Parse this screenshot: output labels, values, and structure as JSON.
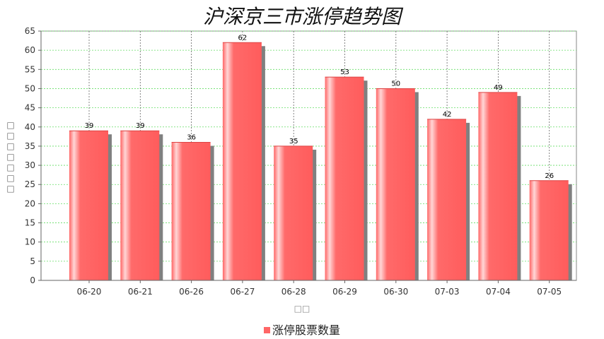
{
  "chart_data": {
    "type": "bar",
    "title": "沪深京三市涨停趋势图",
    "categories": [
      "06-20",
      "06-21",
      "06-26",
      "06-27",
      "06-28",
      "06-29",
      "06-30",
      "07-03",
      "07-04",
      "07-05"
    ],
    "series": [
      {
        "name": "涨停股票数量",
        "values": [
          39,
          39,
          36,
          62,
          35,
          53,
          50,
          42,
          49,
          26
        ]
      }
    ],
    "ylim": [
      0,
      65
    ],
    "yticks": [
      0,
      5,
      10,
      15,
      20,
      25,
      30,
      35,
      40,
      45,
      50,
      55,
      60,
      65
    ],
    "xlabel": "□□",
    "ylabel": "□□□□□□□",
    "grid": true,
    "legend": "bottom",
    "colors": {
      "bar": "#ff6666",
      "bar_highlight": "#ffd0d0",
      "shadow": "#808080",
      "grid": "#66dd66"
    }
  }
}
